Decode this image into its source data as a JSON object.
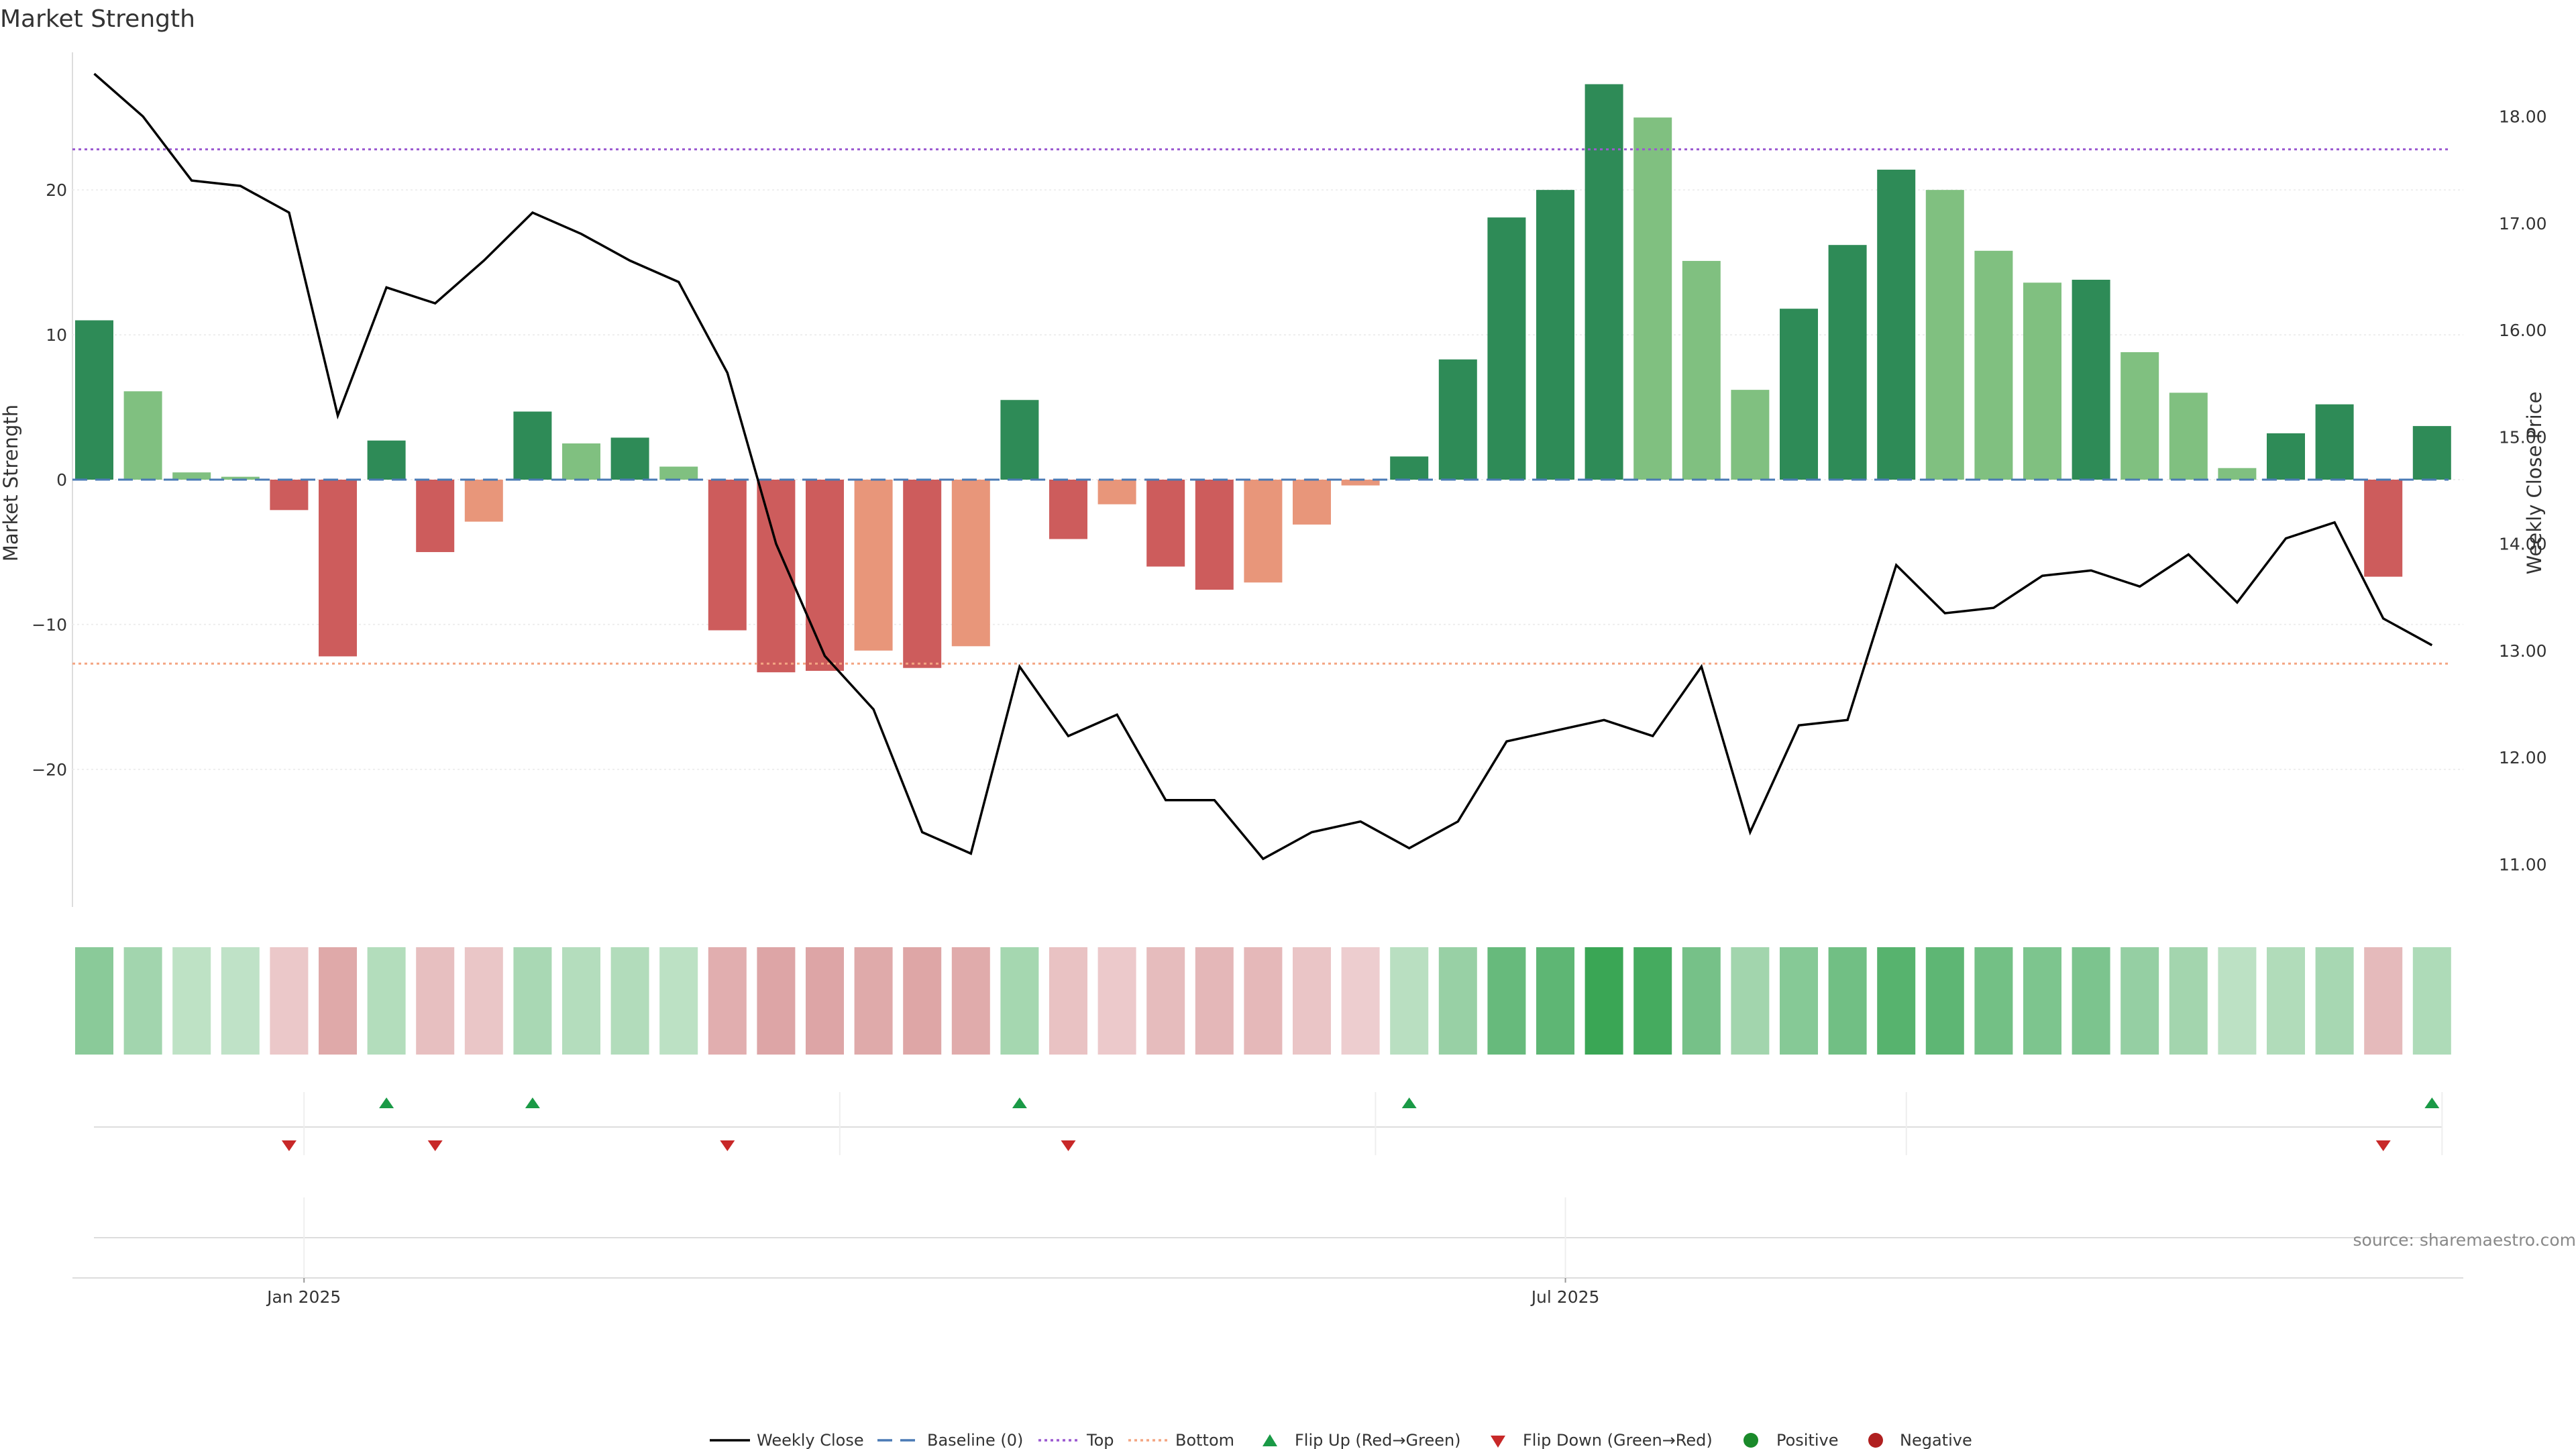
{
  "chart_data": {
    "type": "bar",
    "title": "Market Strength",
    "ylabel_left": "Market Strength",
    "ylabel_right": "Weekly Close Price",
    "left_ylim": [
      -29.5,
      29.5
    ],
    "right_ylim": [
      10.6,
      18.6
    ],
    "left_ticks": [
      -20,
      -10,
      0,
      10,
      20
    ],
    "left_tick_labels": [
      "−20",
      "−10",
      "0",
      "10",
      "20"
    ],
    "right_ticks": [
      11,
      12,
      13,
      14,
      15,
      16,
      17,
      18
    ],
    "right_tick_labels": [
      "11.00",
      "12.00",
      "13.00",
      "14.00",
      "15.00",
      "16.00",
      "17.00",
      "18.00"
    ],
    "x_ticks": [
      {
        "index": 4.7,
        "label": "Jan 2025"
      },
      {
        "index": 30.6,
        "label": "Jul 2025"
      }
    ],
    "top_line": 22.8,
    "bottom_line": -12.7,
    "baseline": 0,
    "strength": [
      11,
      6.1,
      0.5,
      0.2,
      -2.1,
      -12.2,
      2.7,
      -5,
      -2.9,
      4.7,
      2.5,
      2.9,
      0.9,
      -10.4,
      -13.3,
      -13.2,
      -11.8,
      -13,
      -11.5,
      5.5,
      -4.1,
      -1.7,
      -6,
      -7.6,
      -7.1,
      -3.1,
      -0.4,
      1.6,
      8.3,
      18.1,
      20,
      27.3,
      25,
      15.1,
      6.2,
      11.8,
      16.2,
      21.4,
      20,
      15.8,
      13.6,
      13.8,
      8.8,
      6,
      0.8,
      3.2,
      5.2,
      -6.7,
      3.7
    ],
    "bar_shades": [
      "pos-strong",
      "pos-light",
      "pos-light",
      "pos-light",
      "neg-strong",
      "neg-strong",
      "pos-strong",
      "neg-strong",
      "neg-light",
      "pos-strong",
      "pos-light",
      "pos-strong",
      "pos-light",
      "neg-strong",
      "neg-strong",
      "neg-strong",
      "neg-light",
      "neg-strong",
      "neg-light",
      "pos-strong",
      "neg-strong",
      "neg-light",
      "neg-strong",
      "neg-strong",
      "neg-light",
      "neg-light",
      "neg-light",
      "pos-strong",
      "pos-strong",
      "pos-strong",
      "pos-strong",
      "pos-strong",
      "pos-light",
      "pos-light",
      "pos-light",
      "pos-strong",
      "pos-strong",
      "pos-strong",
      "pos-light",
      "pos-light",
      "pos-light",
      "pos-strong",
      "pos-light",
      "pos-light",
      "pos-light",
      "pos-strong",
      "pos-strong",
      "neg-strong",
      "pos-strong"
    ],
    "weekly_close": [
      18.4,
      18,
      17.4,
      17.35,
      17.1,
      15.2,
      16.4,
      16.25,
      16.65,
      17.1,
      16.9,
      16.65,
      16.45,
      15.6,
      14,
      12.95,
      12.45,
      11.3,
      11.1,
      12.85,
      12.2,
      12.4,
      11.6,
      11.6,
      11.05,
      11.3,
      11.4,
      11.15,
      11.4,
      12.15,
      12.25,
      12.35,
      12.2,
      12.85,
      11.3,
      12.3,
      12.35,
      13.8,
      13.35,
      13.4,
      13.7,
      13.75,
      13.6,
      13.9,
      13.45,
      14.05,
      14.2,
      13.3,
      13.05
    ],
    "flip_up_indices": [
      6,
      9,
      19,
      27,
      48
    ],
    "flip_down_indices": [
      4,
      7,
      13,
      20,
      47
    ],
    "legend": [
      "Weekly Close",
      "Baseline (0)",
      "Top",
      "Bottom",
      "Flip Up (Red→Green)",
      "Flip Down (Green→Red)",
      "Positive",
      "Negative"
    ],
    "source": "source: sharemaestro.com",
    "colors": {
      "pos-strong": "#2e8b57",
      "pos-light": "#80c080",
      "neg-strong": "#cd5c5c",
      "neg-light": "#e8967a",
      "top_line": "#9b59d0",
      "bottom_line": "#f4a582",
      "baseline": "#4a7ab5",
      "close_line": "#000000",
      "flip_up": "#1a9a46",
      "flip_down": "#c82828",
      "positive_dot": "#1a8a2a",
      "negative_dot": "#b02020"
    }
  }
}
